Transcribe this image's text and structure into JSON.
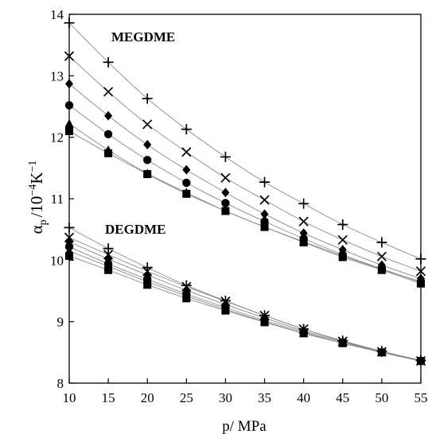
{
  "chart_data": {
    "type": "scatter",
    "xlabel": "p/ MPa",
    "ylabel": {
      "symbol": "α",
      "subscript": "p",
      "units": "/10",
      "exponent": "−4",
      "unit_k": "K",
      "unit_k_exponent": "−1"
    },
    "xlim": [
      10,
      55
    ],
    "ylim": [
      8,
      14
    ],
    "x_ticks": [
      10,
      15,
      20,
      25,
      30,
      35,
      40,
      45,
      50,
      55
    ],
    "y_ticks": [
      8,
      9,
      10,
      11,
      12,
      13,
      14
    ],
    "grid": false,
    "legend": "none",
    "annotations": [
      "MEGDME",
      "DEGDME"
    ],
    "groups": [
      {
        "name": "MEGDME",
        "x": [
          10,
          15,
          20,
          25,
          30,
          35,
          40,
          45,
          50,
          55
        ],
        "series": [
          {
            "marker": "plus",
            "values": [
              13.86,
              13.22,
              12.63,
              12.13,
              11.68,
              11.27,
              10.92,
              10.58,
              10.29,
              10.02
            ]
          },
          {
            "marker": "cross",
            "values": [
              13.32,
              12.74,
              12.21,
              11.76,
              11.34,
              10.98,
              10.63,
              10.33,
              10.06,
              9.82
            ]
          },
          {
            "marker": "diamond",
            "values": [
              12.87,
              12.35,
              11.88,
              11.47,
              11.1,
              10.75,
              10.44,
              10.17,
              9.92,
              9.7
            ]
          },
          {
            "marker": "circle",
            "values": [
              12.52,
              12.05,
              11.63,
              11.26,
              10.93,
              10.63,
              10.35,
              10.09,
              9.86,
              9.64
            ]
          },
          {
            "marker": "triangle",
            "values": [
              12.22,
              11.79,
              11.41,
              11.1,
              10.8,
              10.54,
              10.3,
              10.07,
              9.85,
              9.65
            ]
          },
          {
            "marker": "square",
            "values": [
              12.1,
              11.74,
              11.4,
              11.08,
              10.8,
              10.54,
              10.29,
              10.05,
              9.84,
              9.62
            ]
          }
        ]
      },
      {
        "name": "DEGDME",
        "x": [
          10,
          15,
          20,
          25,
          30,
          35,
          40,
          45,
          50,
          55
        ],
        "series": [
          {
            "marker": "plus",
            "values": [
              10.53,
              10.19,
              9.88,
              9.59,
              9.34,
              9.1,
              8.88,
              8.69,
              8.52,
              8.37
            ]
          },
          {
            "marker": "cross",
            "values": [
              10.37,
              10.09,
              9.82,
              9.57,
              9.33,
              9.1,
              8.88,
              8.68,
              8.51,
              8.36
            ]
          },
          {
            "marker": "diamond",
            "values": [
              10.3,
              10.02,
              9.76,
              9.51,
              9.28,
              9.06,
              8.85,
              8.67,
              8.5,
              8.36
            ]
          },
          {
            "marker": "circle",
            "values": [
              10.22,
              9.94,
              9.69,
              9.45,
              9.23,
              9.02,
              8.83,
              8.65,
              8.5,
              8.36
            ]
          },
          {
            "marker": "triangle",
            "values": [
              10.15,
              9.9,
              9.65,
              9.42,
              9.2,
              9.0,
              8.81,
              8.65,
              8.5,
              8.36
            ]
          },
          {
            "marker": "square",
            "values": [
              10.07,
              9.84,
              9.6,
              9.38,
              9.18,
              8.99,
              8.81,
              8.65,
              8.5,
              8.36
            ]
          }
        ]
      }
    ]
  }
}
